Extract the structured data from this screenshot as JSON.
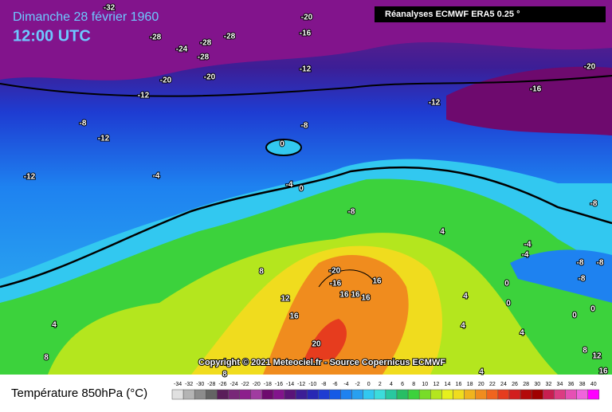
{
  "header": {
    "title": "Dimanche 28 février 1960",
    "time": "12:00 UTC",
    "source": "Réanalyses ECMWF ERA5 0.25 °"
  },
  "copyright": "Copyright © 2021 Meteociel.fr - Source Copernicus ECMWF",
  "legend": {
    "title": "Température 850hPa (°C)",
    "ticks": [
      -34,
      -32,
      -30,
      -28,
      -26,
      -24,
      -22,
      -20,
      -18,
      -16,
      -14,
      -12,
      -10,
      -8,
      -6,
      -4,
      -2,
      0,
      2,
      4,
      6,
      8,
      10,
      12,
      14,
      16,
      18,
      20,
      22,
      24,
      26,
      28,
      30,
      32,
      34,
      36,
      38,
      40
    ],
    "colors": [
      "#e0e0e0",
      "#b4b4b4",
      "#8c8c8c",
      "#646464",
      "#5a1e5a",
      "#782878",
      "#8c1e8c",
      "#a03ca0",
      "#6e0a6e",
      "#82148c",
      "#5a1478",
      "#3c1e96",
      "#2828b4",
      "#1e3cd2",
      "#145ae6",
      "#1e82f0",
      "#28a0f0",
      "#32c8f0",
      "#3cdcdc",
      "#28c8a0",
      "#28be64",
      "#3cd23c",
      "#78dc28",
      "#b4e61e",
      "#e6f01e",
      "#f0dc1e",
      "#f0b41e",
      "#f08c1e",
      "#f0641e",
      "#e63c1e",
      "#d21e1e",
      "#b40a0a",
      "#a00000",
      "#c81e50",
      "#dc3c82",
      "#e650b4",
      "#f064dc",
      "#ff00ff"
    ]
  },
  "contour_labels": [
    -32,
    -20,
    -28,
    -16,
    -24,
    -28,
    -28,
    -28,
    -20,
    -20,
    -12,
    -12,
    -12,
    -16,
    -20,
    -8,
    -12,
    -8,
    0,
    -12,
    -4,
    -4,
    0,
    -8,
    4,
    -8,
    -4,
    -4,
    -8,
    -8,
    -8,
    8,
    -20,
    -16,
    16,
    16,
    16,
    16,
    12,
    0,
    0,
    4,
    4,
    16,
    20,
    4,
    8,
    0,
    0,
    4,
    8,
    12,
    16,
    4,
    8
  ]
}
